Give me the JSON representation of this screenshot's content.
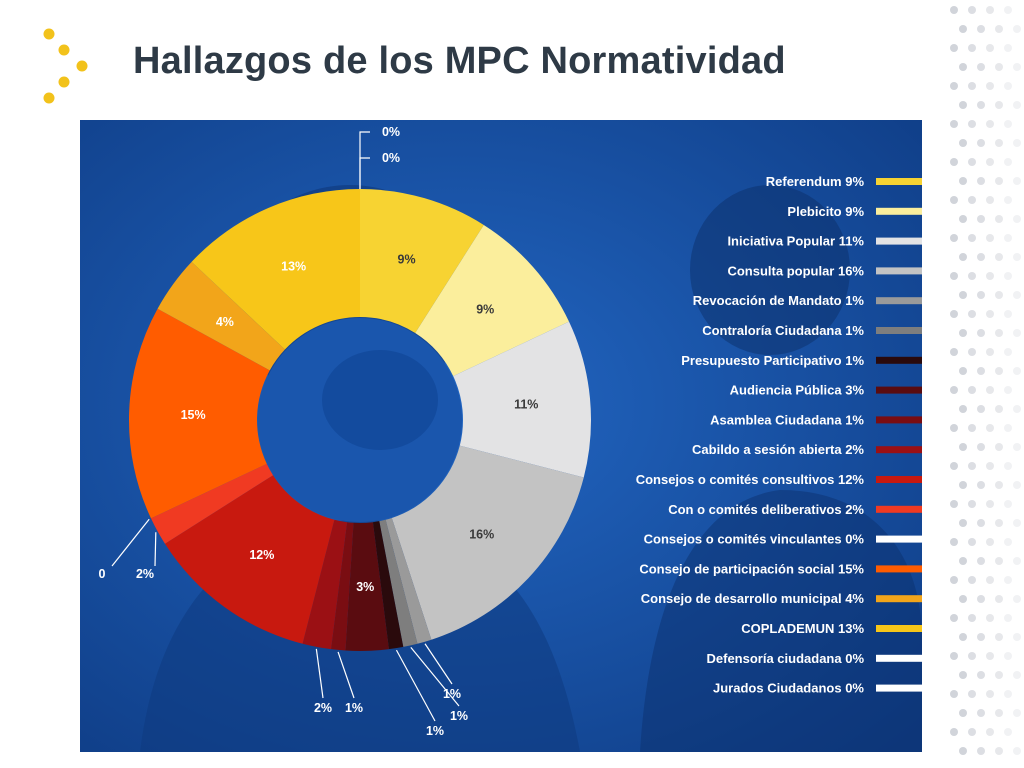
{
  "slide": {
    "title": "Hallazgos de los MPC Normatividad",
    "accent_color": "#f2c21b"
  },
  "chart_data": {
    "type": "pie",
    "donut": true,
    "legend_position": "right",
    "series": [
      {
        "label": "Referendum",
        "value": 9,
        "value_label": "9%",
        "color": "#f7d332",
        "slice_label": "9%",
        "callout": false
      },
      {
        "label": "Plebicito",
        "value": 9,
        "value_label": "9%",
        "color": "#fbee9c",
        "slice_label": "9%",
        "callout": false
      },
      {
        "label": "Iniciativa Popular",
        "value": 11,
        "value_label": "11%",
        "color": "#e3e3e4",
        "slice_label": "11%",
        "callout": false
      },
      {
        "label": "Consulta popular",
        "value": 16,
        "value_label": "16%",
        "color": "#c3c3c3",
        "slice_label": "16%",
        "callout": false
      },
      {
        "label": "Revocación de Mandato",
        "value": 1,
        "value_label": "1%",
        "color": "#9a9a9a",
        "slice_label": "1%",
        "callout": true
      },
      {
        "label": "Contraloría Ciudadana",
        "value": 1,
        "value_label": "1%",
        "color": "#7e7e7e",
        "slice_label": "1%",
        "callout": true
      },
      {
        "label": "Presupuesto Participativo",
        "value": 1,
        "value_label": "1%",
        "color": "#2a0a0c",
        "slice_label": "1%",
        "callout": true
      },
      {
        "label": "Audiencia Pública",
        "value": 3,
        "value_label": "3%",
        "color": "#5a0c10",
        "slice_label": "3%",
        "callout": false
      },
      {
        "label": "Asamblea Ciudadana",
        "value": 1,
        "value_label": "1%",
        "color": "#7a0d12",
        "slice_label": "1%",
        "callout": true
      },
      {
        "label": "Cabildo a sesión abierta",
        "value": 2,
        "value_label": "2%",
        "color": "#9b1014",
        "slice_label": "2%",
        "callout": true
      },
      {
        "label": "Consejos o comités consultivos",
        "value": 12,
        "value_label": "12%",
        "color": "#c8190f",
        "slice_label": "12%",
        "callout": false
      },
      {
        "label": "Con o comités deliberativos",
        "value": 2,
        "value_label": "2%",
        "color": "#f03a22",
        "slice_label": "2%",
        "callout": true
      },
      {
        "label": "Consejos o comités vinculantes",
        "value": 0,
        "value_label": "0%",
        "color": "#ffffff",
        "slice_label": "0",
        "callout": true
      },
      {
        "label": "Consejo de participación social",
        "value": 15,
        "value_label": "15%",
        "color": "#ff5c00",
        "slice_label": "15%",
        "callout": false
      },
      {
        "label": "Consejo de desarrollo municipal",
        "value": 4,
        "value_label": "4%",
        "color": "#f2a51a",
        "slice_label": "4%",
        "callout": false
      },
      {
        "label": "COPLADEMUN",
        "value": 13,
        "value_label": "13%",
        "color": "#f7c619",
        "slice_label": "13%",
        "callout": false
      },
      {
        "label": "Defensoría ciudadana",
        "value": 0,
        "value_label": "0%",
        "color": "#ffffff",
        "slice_label": "0%",
        "callout": true
      },
      {
        "label": "Jurados Ciudadanos",
        "value": 0,
        "value_label": "0%",
        "color": "#ffffff",
        "slice_label": "0%",
        "callout": true
      }
    ]
  }
}
